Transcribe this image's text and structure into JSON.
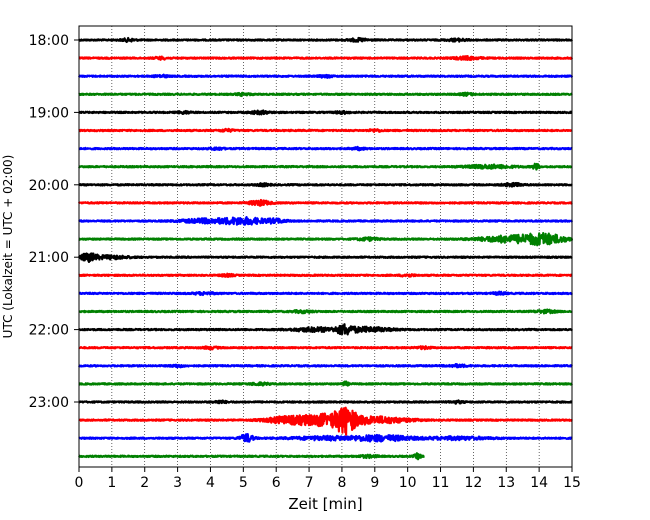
{
  "chart_data": {
    "type": "line",
    "title": "",
    "xlabel": "Zeit  [min]",
    "ylabel": "UTC (Lokalzeit = UTC + 02:00)",
    "xlim": [
      0,
      15
    ],
    "x_ticks": [
      "0",
      "1",
      "2",
      "3",
      "4",
      "5",
      "6",
      "7",
      "8",
      "9",
      "10",
      "11",
      "12",
      "13",
      "14",
      "15"
    ],
    "y_tick_labels": [
      "18:00",
      "19:00",
      "20:00",
      "21:00",
      "22:00",
      "23:00"
    ],
    "grid": "vertical dotted",
    "row_interval_minutes": 15,
    "series_colors": [
      "#000000",
      "#ff0000",
      "#0000ff",
      "#008000"
    ],
    "rows": [
      {
        "start": "18:00",
        "color": "#000000",
        "x_end": 15,
        "events": [
          {
            "t": 1.5,
            "amp": 0.25,
            "width": 0.2
          },
          {
            "t": 8.5,
            "amp": 0.25,
            "width": 0.3
          },
          {
            "t": 11.5,
            "amp": 0.2,
            "width": 0.3
          }
        ]
      },
      {
        "start": "18:15",
        "color": "#ff0000",
        "x_end": 15,
        "events": [
          {
            "t": 2.5,
            "amp": 0.2,
            "width": 0.2
          },
          {
            "t": 11.8,
            "amp": 0.25,
            "width": 0.4
          }
        ]
      },
      {
        "start": "18:30",
        "color": "#0000ff",
        "x_end": 15,
        "events": [
          {
            "t": 2.5,
            "amp": 0.2,
            "width": 0.2
          },
          {
            "t": 7.5,
            "amp": 0.2,
            "width": 0.2
          }
        ]
      },
      {
        "start": "18:45",
        "color": "#008000",
        "x_end": 15,
        "events": [
          {
            "t": 5.0,
            "amp": 0.2,
            "width": 0.2
          },
          {
            "t": 11.8,
            "amp": 0.2,
            "width": 0.2
          }
        ]
      },
      {
        "start": "19:00",
        "color": "#000000",
        "x_end": 15,
        "events": [
          {
            "t": 3.2,
            "amp": 0.2,
            "width": 0.2
          },
          {
            "t": 5.5,
            "amp": 0.25,
            "width": 0.3
          },
          {
            "t": 8.0,
            "amp": 0.2,
            "width": 0.2
          }
        ]
      },
      {
        "start": "19:15",
        "color": "#ff0000",
        "x_end": 15,
        "events": [
          {
            "t": 4.5,
            "amp": 0.2,
            "width": 0.2
          },
          {
            "t": 9.0,
            "amp": 0.2,
            "width": 0.2
          }
        ]
      },
      {
        "start": "19:30",
        "color": "#0000ff",
        "x_end": 15,
        "events": [
          {
            "t": 4.2,
            "amp": 0.2,
            "width": 0.2
          },
          {
            "t": 8.5,
            "amp": 0.2,
            "width": 0.2
          }
        ]
      },
      {
        "start": "19:45",
        "color": "#008000",
        "x_end": 15,
        "events": [
          {
            "t": 12.5,
            "amp": 0.3,
            "width": 0.7
          },
          {
            "t": 13.9,
            "amp": 0.5,
            "width": 0.1
          }
        ]
      },
      {
        "start": "20:00",
        "color": "#000000",
        "x_end": 15,
        "events": [
          {
            "t": 5.6,
            "amp": 0.2,
            "width": 0.2
          },
          {
            "t": 13.2,
            "amp": 0.25,
            "width": 0.3
          }
        ]
      },
      {
        "start": "20:15",
        "color": "#ff0000",
        "x_end": 15,
        "events": [
          {
            "t": 5.5,
            "amp": 0.45,
            "width": 0.3
          }
        ]
      },
      {
        "start": "20:30",
        "color": "#0000ff",
        "x_end": 15,
        "events": [
          {
            "t": 3.8,
            "amp": 0.35,
            "width": 0.7
          },
          {
            "t": 5.0,
            "amp": 0.6,
            "width": 0.7
          },
          {
            "t": 6.0,
            "amp": 0.3,
            "width": 0.3
          }
        ]
      },
      {
        "start": "20:45",
        "color": "#008000",
        "x_end": 15,
        "events": [
          {
            "t": 8.8,
            "amp": 0.25,
            "width": 0.3
          },
          {
            "t": 13.2,
            "amp": 0.6,
            "width": 1.0
          },
          {
            "t": 14.2,
            "amp": 0.8,
            "width": 0.6
          }
        ]
      },
      {
        "start": "21:00",
        "color": "#000000",
        "x_end": 15,
        "events": [
          {
            "t": 0.3,
            "amp": 0.7,
            "width": 0.25
          },
          {
            "t": 1.0,
            "amp": 0.3,
            "width": 0.5
          }
        ]
      },
      {
        "start": "21:15",
        "color": "#ff0000",
        "x_end": 15,
        "events": [
          {
            "t": 4.5,
            "amp": 0.2,
            "width": 0.2
          },
          {
            "t": 10.0,
            "amp": 0.2,
            "width": 0.2
          }
        ]
      },
      {
        "start": "21:30",
        "color": "#0000ff",
        "x_end": 15,
        "events": [
          {
            "t": 3.8,
            "amp": 0.2,
            "width": 0.3
          },
          {
            "t": 12.8,
            "amp": 0.2,
            "width": 0.2
          }
        ]
      },
      {
        "start": "21:45",
        "color": "#008000",
        "x_end": 15,
        "events": [
          {
            "t": 6.8,
            "amp": 0.2,
            "width": 0.3
          },
          {
            "t": 14.2,
            "amp": 0.25,
            "width": 0.3
          }
        ]
      },
      {
        "start": "22:00",
        "color": "#000000",
        "x_end": 15,
        "events": [
          {
            "t": 7.2,
            "amp": 0.35,
            "width": 0.7
          },
          {
            "t": 8.1,
            "amp": 0.75,
            "width": 0.25
          },
          {
            "t": 8.8,
            "amp": 0.4,
            "width": 0.7
          }
        ]
      },
      {
        "start": "22:15",
        "color": "#ff0000",
        "x_end": 15,
        "events": [
          {
            "t": 4.0,
            "amp": 0.2,
            "width": 0.2
          },
          {
            "t": 10.5,
            "amp": 0.2,
            "width": 0.2
          }
        ]
      },
      {
        "start": "22:30",
        "color": "#0000ff",
        "x_end": 15,
        "events": [
          {
            "t": 3.0,
            "amp": 0.2,
            "width": 0.2
          },
          {
            "t": 11.5,
            "amp": 0.2,
            "width": 0.3
          }
        ]
      },
      {
        "start": "22:45",
        "color": "#008000",
        "x_end": 15,
        "events": [
          {
            "t": 8.1,
            "amp": 0.35,
            "width": 0.1
          },
          {
            "t": 5.5,
            "amp": 0.2,
            "width": 0.3
          }
        ]
      },
      {
        "start": "23:00",
        "color": "#000000",
        "x_end": 15,
        "events": [
          {
            "t": 4.3,
            "amp": 0.2,
            "width": 0.2
          },
          {
            "t": 11.5,
            "amp": 0.2,
            "width": 0.2
          }
        ]
      },
      {
        "start": "23:15",
        "color": "#ff0000",
        "x_end": 15,
        "events": [
          {
            "t": 6.2,
            "amp": 0.45,
            "width": 0.6
          },
          {
            "t": 7.4,
            "amp": 1.0,
            "width": 0.9
          },
          {
            "t": 8.1,
            "amp": 1.8,
            "width": 0.3
          },
          {
            "t": 9.0,
            "amp": 0.6,
            "width": 1.0
          }
        ]
      },
      {
        "start": "23:30",
        "color": "#0000ff",
        "x_end": 15,
        "events": [
          {
            "t": 5.1,
            "amp": 0.7,
            "width": 0.2
          },
          {
            "t": 7.5,
            "amp": 0.3,
            "width": 1.0
          },
          {
            "t": 9.2,
            "amp": 0.5,
            "width": 0.9
          },
          {
            "t": 11.5,
            "amp": 0.25,
            "width": 1.0
          }
        ]
      },
      {
        "start": "23:45",
        "color": "#008000",
        "x_end": 10.5,
        "events": [
          {
            "t": 8.8,
            "amp": 0.2,
            "width": 0.3
          },
          {
            "t": 10.3,
            "amp": 0.45,
            "width": 0.1
          }
        ]
      }
    ]
  }
}
